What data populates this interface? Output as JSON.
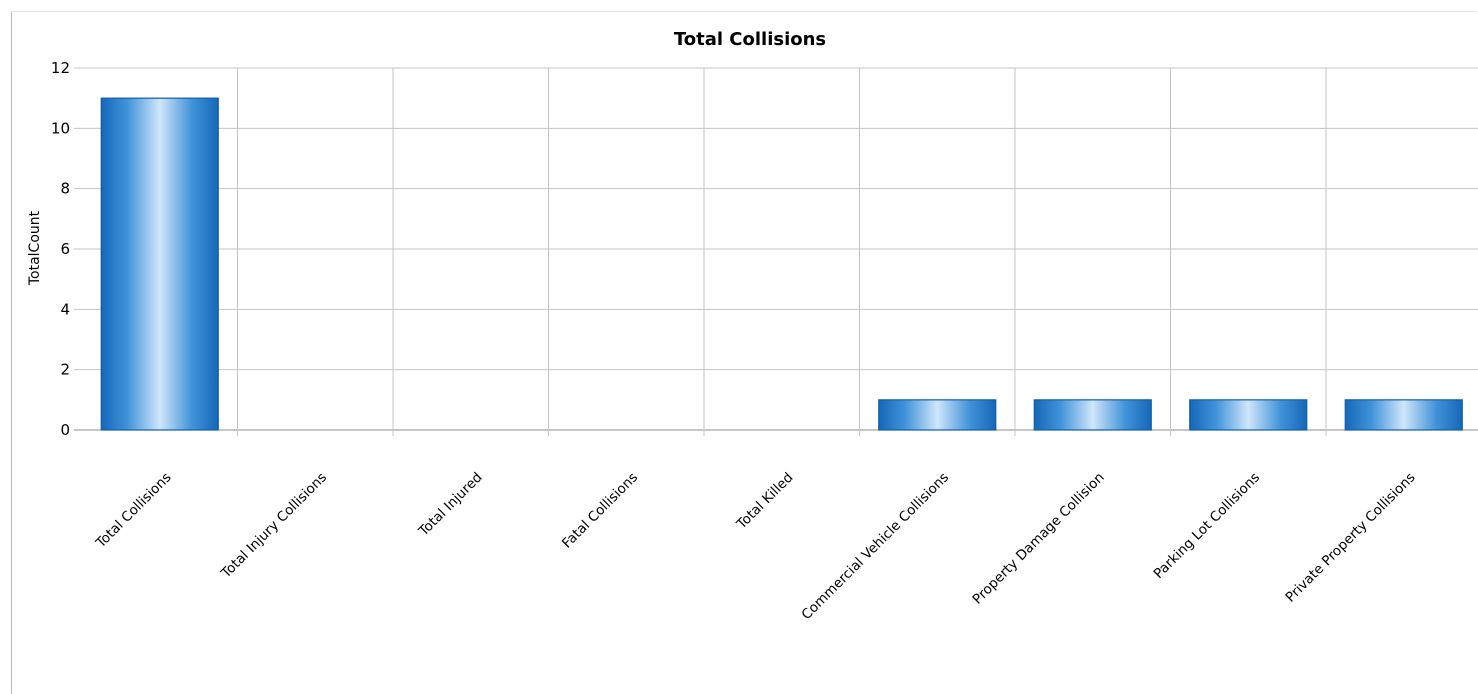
{
  "chart_data": {
    "type": "bar",
    "title": "Total Collisions",
    "xlabel": "",
    "ylabel": "TotalCount",
    "ylim": [
      0,
      12
    ],
    "yticks": [
      0,
      2,
      4,
      6,
      8,
      10,
      12
    ],
    "grid": true,
    "legend": "none",
    "categories": [
      "Total Collisions",
      "Total Injury Collisions",
      "Total Injured",
      "Fatal Collisions",
      "Total Killed",
      "Commercial Vehicle Collisions",
      "Property Damage Collision",
      "Parking Lot Collisions",
      "Private Property Collisions"
    ],
    "values": [
      11,
      0,
      0,
      0,
      0,
      1,
      1,
      1,
      1
    ],
    "bar_color": "#1f78c8"
  }
}
